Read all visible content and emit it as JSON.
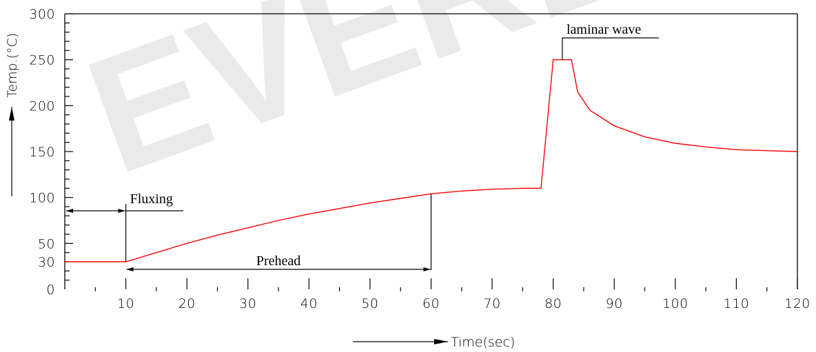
{
  "watermark": "EVERL",
  "chart_data": {
    "type": "line",
    "xlabel": "Time(sec)",
    "ylabel": "Temp.(°C)",
    "xlim": [
      0,
      120
    ],
    "ylim": [
      0,
      300
    ],
    "x_ticks": [
      10,
      20,
      30,
      40,
      50,
      60,
      70,
      80,
      90,
      100,
      110,
      120
    ],
    "y_ticks": [
      0,
      30,
      50,
      100,
      150,
      200,
      250,
      300
    ],
    "grid": false,
    "series": [
      {
        "color": "#ff0000",
        "points": [
          [
            0,
            30
          ],
          [
            10,
            30
          ],
          [
            15,
            40
          ],
          [
            20,
            50
          ],
          [
            25,
            59
          ],
          [
            30,
            67
          ],
          [
            35,
            75
          ],
          [
            40,
            82
          ],
          [
            45,
            88
          ],
          [
            50,
            94
          ],
          [
            55,
            99
          ],
          [
            60,
            104
          ],
          [
            65,
            107
          ],
          [
            70,
            109
          ],
          [
            75,
            110
          ],
          [
            78,
            110
          ],
          [
            80,
            250
          ],
          [
            83,
            250
          ],
          [
            84,
            215
          ],
          [
            86,
            195
          ],
          [
            90,
            178
          ],
          [
            95,
            166
          ],
          [
            100,
            159
          ],
          [
            105,
            155
          ],
          [
            110,
            152
          ],
          [
            115,
            151
          ],
          [
            120,
            150
          ]
        ]
      }
    ],
    "annotations": [
      {
        "text": "Fluxing",
        "from_x": 0,
        "to_x": 10
      },
      {
        "text": "Prehead",
        "from_x": 10,
        "to_x": 60
      },
      {
        "text": "laminar wave",
        "x_start": 80,
        "x_end": 83
      }
    ]
  }
}
